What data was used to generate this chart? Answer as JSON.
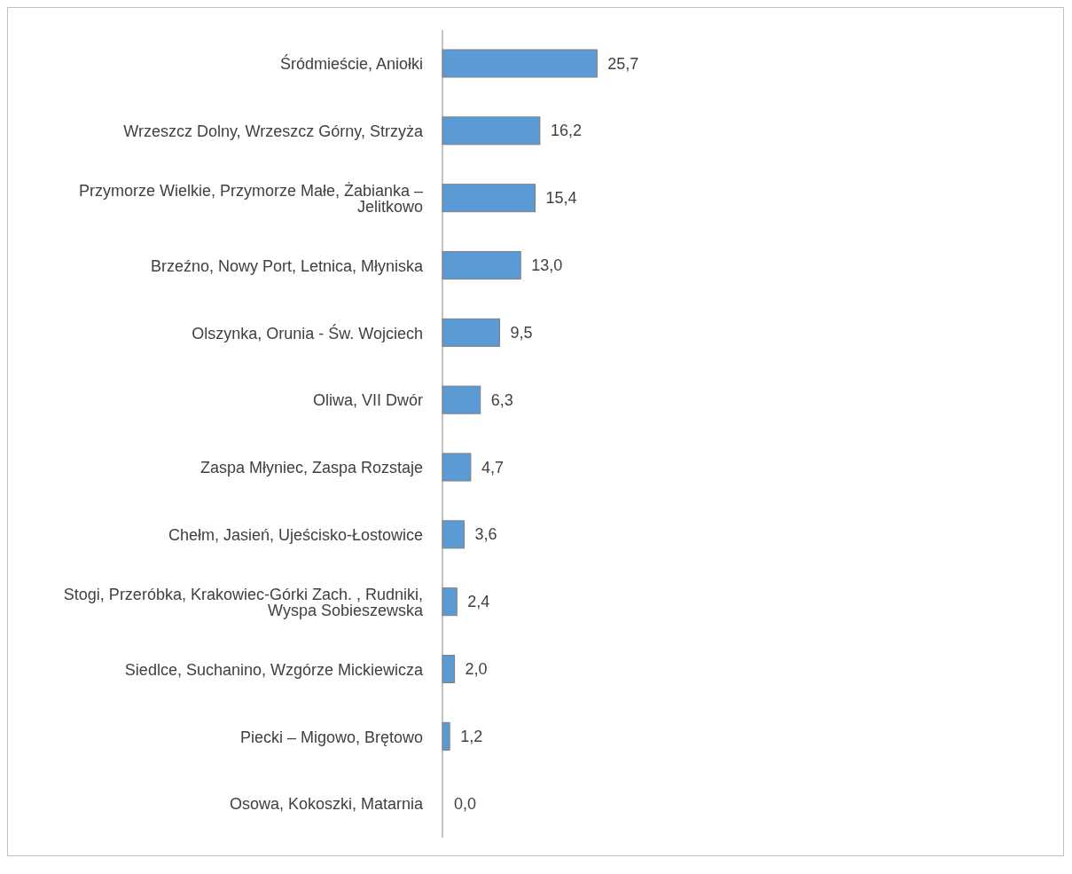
{
  "chart_data": {
    "type": "bar",
    "orientation": "horizontal",
    "categories": [
      "Śródmieście, Aniołki",
      "Wrzeszcz Dolny, Wrzeszcz Górny, Strzyża",
      "Przymorze Wielkie, Przymorze Małe, Żabianka – Jelitkowo",
      "Brzeźno, Nowy Port, Letnica, Młyniska",
      "Olszynka, Orunia - Św. Wojciech",
      "Oliwa, VII Dwór",
      "Zaspa Młyniec, Zaspa Rozstaje",
      "Chełm, Jasień, Ujeścisko-Łostowice",
      "Stogi, Przeróbka, Krakowiec-Górki Zach. , Rudniki, Wyspa Sobieszewska",
      "Siedlce, Suchanino, Wzgórze Mickiewicza",
      "Piecki – Migowo, Brętowo",
      "Osowa, Kokoszki, Matarnia"
    ],
    "values": [
      25.7,
      16.2,
      15.4,
      13.0,
      9.5,
      6.3,
      4.7,
      3.6,
      2.4,
      2.0,
      1.2,
      0.0
    ],
    "value_labels": [
      "25,7",
      "16,2",
      "15,4",
      "13,0",
      "9,5",
      "6,3",
      "4,7",
      "3,6",
      "2,4",
      "2,0",
      "1,2",
      "0,0"
    ],
    "color": "#5b9bd5",
    "grid": false,
    "legend": false
  }
}
